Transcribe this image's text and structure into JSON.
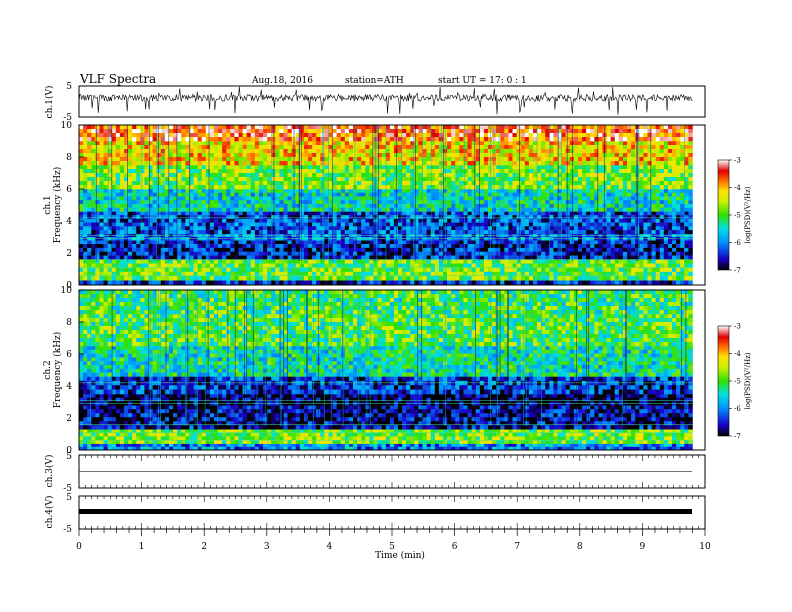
{
  "header": {
    "title": "VLF Spectra",
    "date": "Aug.18, 2016",
    "station": "station=ATH",
    "start": "start  UT =   17: 0  : 1"
  },
  "chart_data": [
    {
      "type": "line",
      "panel": "ch1-waveform",
      "ylabel": "ch.1(V)",
      "ylim": [
        -5,
        5
      ],
      "yticks": [
        "5",
        "-5"
      ],
      "baseline_v": 0.0,
      "trace_color": "#000000"
    },
    {
      "type": "heatmap",
      "panel": "ch1-spectrogram",
      "ylabel": "ch.1\nFrequency (kHz)",
      "ylabel_channel": "ch.1",
      "ylabel_quantity": "Frequency  (kHz)",
      "ylim": [
        0,
        10
      ],
      "yticks": [
        "0",
        "2",
        "4",
        "6",
        "8",
        "10"
      ],
      "colorbar": {
        "label": "log(PSD)(V²/Hz)",
        "ticks": [
          "-7",
          "-6",
          "-5",
          "-4",
          "-3"
        ],
        "range": [
          -7,
          -3
        ]
      },
      "bands_khz": [
        {
          "from": 0.0,
          "to": 0.3,
          "logpsd": -6.5
        },
        {
          "from": 0.3,
          "to": 1.6,
          "logpsd": -4.9
        },
        {
          "from": 1.6,
          "to": 2.8,
          "logpsd": -6.5
        },
        {
          "from": 2.8,
          "to": 3.2,
          "logpsd": -6.1
        },
        {
          "from": 3.2,
          "to": 4.6,
          "logpsd": -6.3
        },
        {
          "from": 4.6,
          "to": 6.0,
          "logpsd": -5.5
        },
        {
          "from": 6.0,
          "to": 7.5,
          "logpsd": -4.8
        },
        {
          "from": 7.5,
          "to": 9.0,
          "logpsd": -4.2
        },
        {
          "from": 9.0,
          "to": 10.0,
          "logpsd": -3.6
        }
      ]
    },
    {
      "type": "heatmap",
      "panel": "ch2-spectrogram",
      "ylabel": "ch.2\nFrequency (kHz)",
      "ylabel_channel": "ch.2",
      "ylabel_quantity": "Frequency  (kHz)",
      "ylim": [
        0,
        10
      ],
      "yticks": [
        "0",
        "2",
        "4",
        "6",
        "8",
        "10"
      ],
      "colorbar": {
        "label": "log(PSD)(V²/Hz)",
        "ticks": [
          "-7",
          "-6",
          "-5",
          "-4",
          "-3"
        ],
        "range": [
          -7,
          -3
        ]
      },
      "bands_khz": [
        {
          "from": 0.0,
          "to": 0.4,
          "logpsd": -6.0
        },
        {
          "from": 0.4,
          "to": 1.3,
          "logpsd": -4.8
        },
        {
          "from": 1.3,
          "to": 2.8,
          "logpsd": -6.7
        },
        {
          "from": 2.8,
          "to": 3.5,
          "logpsd": -6.9
        },
        {
          "from": 3.5,
          "to": 4.6,
          "logpsd": -6.4
        },
        {
          "from": 4.6,
          "to": 6.5,
          "logpsd": -5.4
        },
        {
          "from": 6.5,
          "to": 8.5,
          "logpsd": -5.0
        },
        {
          "from": 8.5,
          "to": 10.0,
          "logpsd": -5.1
        }
      ]
    },
    {
      "type": "line",
      "panel": "ch3-waveform",
      "ylabel": "ch.3(V)",
      "ylim": [
        -5,
        5
      ],
      "yticks": [
        "5",
        "-5"
      ],
      "baseline_v": 0.0,
      "trace_color": "#000000"
    },
    {
      "type": "line",
      "panel": "ch4-waveform",
      "ylabel": "ch.4(V)",
      "ylim": [
        -5,
        5
      ],
      "yticks": [
        "5",
        "-5"
      ],
      "baseline_v": -0.5,
      "trace_color": "#000000"
    }
  ],
  "x_axis": {
    "xlabel": "Time  (min)",
    "xlim": [
      0,
      10
    ],
    "data_end_min": 9.8,
    "xticks": [
      "0",
      "1",
      "2",
      "3",
      "4",
      "5",
      "6",
      "7",
      "8",
      "9",
      "10"
    ]
  }
}
